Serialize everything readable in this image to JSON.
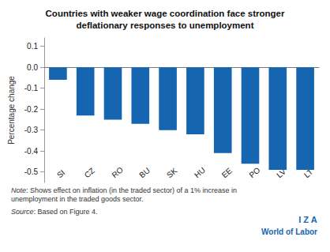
{
  "chart_data": {
    "type": "bar",
    "title": "Countries with weaker wage coordination face stronger\ndeflationary responses to unemployment",
    "y_label": "Percentage change",
    "categories": [
      "SI",
      "CZ",
      "RO",
      "BU",
      "SK",
      "HU",
      "EE",
      "PO",
      "LV",
      "LT"
    ],
    "values": [
      -0.06,
      -0.23,
      -0.25,
      -0.27,
      -0.3,
      -0.32,
      -0.41,
      -0.46,
      -0.49,
      -0.49
    ],
    "color": "#1565b0",
    "ylim": [
      -0.55,
      0.14
    ],
    "yticks": [
      0.1,
      {
        "value": 0,
        "label": "0.0"
      },
      -0.1,
      -0.2,
      -0.3,
      -0.4,
      -0.5
    ],
    "grid": false,
    "annotations": [
      "Note",
      ": Shows effect on inflation (in the traded sector) of a 1% increase in\nunemployment in the traded goods sector.",
      "Source",
      ": Based on Figure 4.",
      "I Z A",
      "World of Labor"
    ]
  }
}
